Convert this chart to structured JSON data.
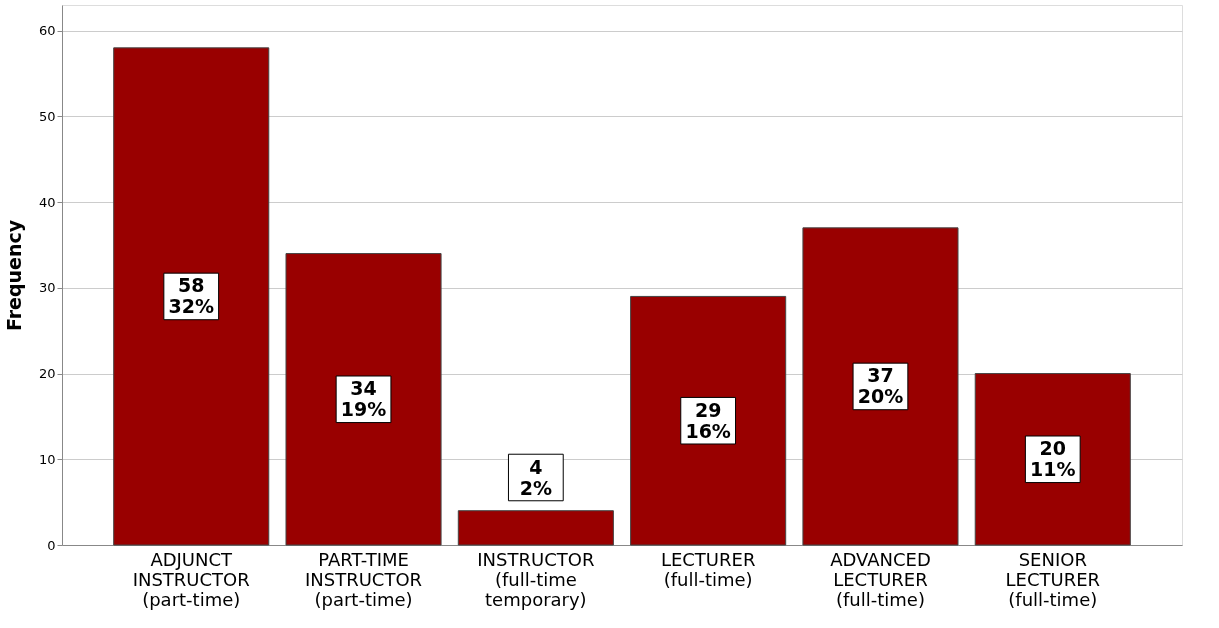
{
  "chart_data": {
    "type": "bar",
    "ylabel": "Frequency",
    "categories": [
      "ADJUNCT\nINSTRUCTOR\n(part-time)",
      "PART-TIME\nINSTRUCTOR\n(part-time)",
      "INSTRUCTOR\n(full-time\ntemporary)",
      "LECTURER\n(full-time)",
      "ADVANCED\nLECTURER\n(full-time)",
      "SENIOR\nLECTURER\n(full-time)"
    ],
    "values": [
      58,
      34,
      4,
      29,
      37,
      20
    ],
    "value_labels": [
      "58\n32%",
      "34\n19%",
      "4\n2%",
      "29\n16%",
      "37\n20%",
      "20\n11%"
    ],
    "color": "#990000",
    "ylim": [
      0,
      63
    ],
    "yticks": [
      0,
      10,
      20,
      30,
      40,
      50,
      60
    ],
    "grid": "y"
  }
}
